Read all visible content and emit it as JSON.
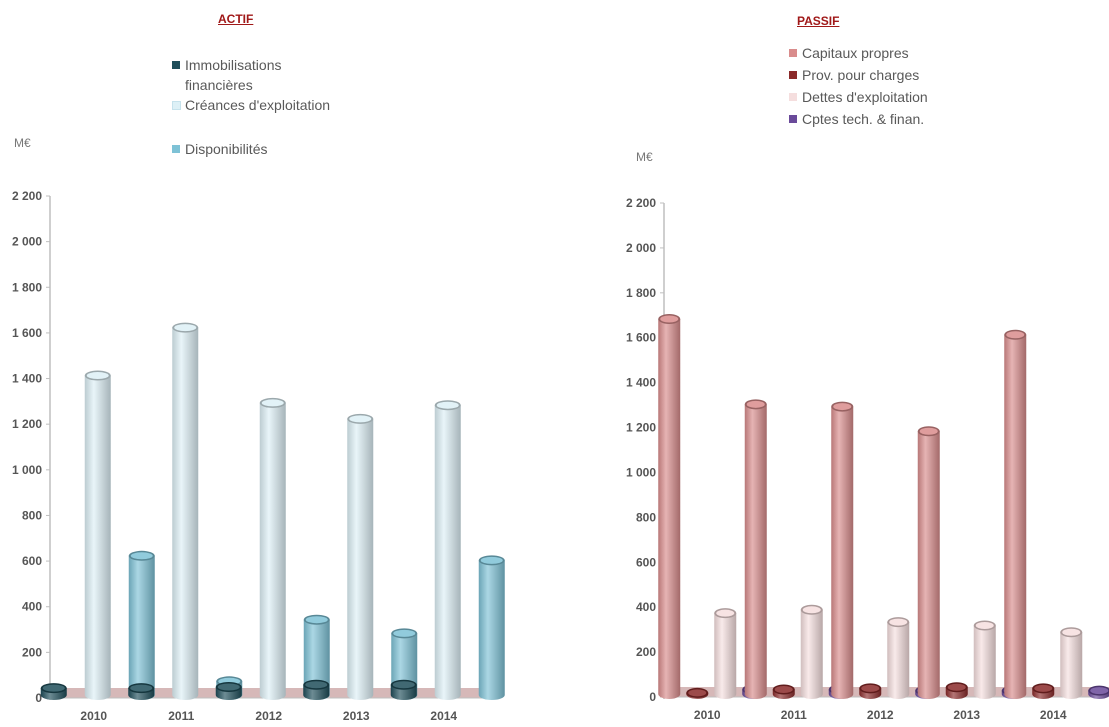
{
  "chart_data": [
    {
      "type": "bar",
      "title": "ACTIF",
      "unit": "M€",
      "categories": [
        "2010",
        "2011",
        "2012",
        "2013",
        "2014"
      ],
      "yticks": [
        "0",
        "200",
        "400",
        "600",
        "800",
        "1 000",
        "1 200",
        "1 400",
        "1 600",
        "1 800",
        "2 000",
        "2 200"
      ],
      "ylim": [
        0,
        2200
      ],
      "series": [
        {
          "name": "Immobilisations\nfinancières",
          "color": "#1f4e5a",
          "values": [
            30,
            30,
            35,
            45,
            45
          ]
        },
        {
          "name": "Créances d'exploitation",
          "color": "#ddf0f6",
          "values": [
            1400,
            1610,
            1280,
            1210,
            1270
          ]
        },
        {
          "name": "Disponibilités",
          "color": "#7ec2d6",
          "values": [
            610,
            60,
            330,
            270,
            590
          ]
        }
      ]
    },
    {
      "type": "bar",
      "title": "PASSIF",
      "unit": "M€",
      "categories": [
        "2010",
        "2011",
        "2012",
        "2013",
        "2014"
      ],
      "yticks": [
        "0",
        "200",
        "400",
        "600",
        "800",
        "1 000",
        "1 200",
        "1 400",
        "1 600",
        "1 800",
        "2 000",
        "2 200"
      ],
      "ylim": [
        0,
        2200
      ],
      "series": [
        {
          "name": "Capitaux propres",
          "color": "#d98c8c",
          "values": [
            1670,
            1290,
            1280,
            1170,
            1600
          ]
        },
        {
          "name": "Prov. pour charges",
          "color": "#8b2a2a",
          "values": [
            5,
            20,
            25,
            30,
            25
          ]
        },
        {
          "name": "Dettes d'exploitation",
          "color": "#f5dede",
          "values": [
            360,
            375,
            320,
            305,
            275
          ]
        },
        {
          "name": "Cptes tech. & finan.",
          "color": "#6a4a9a",
          "values": [
            20,
            20,
            15,
            15,
            15
          ]
        }
      ]
    }
  ]
}
